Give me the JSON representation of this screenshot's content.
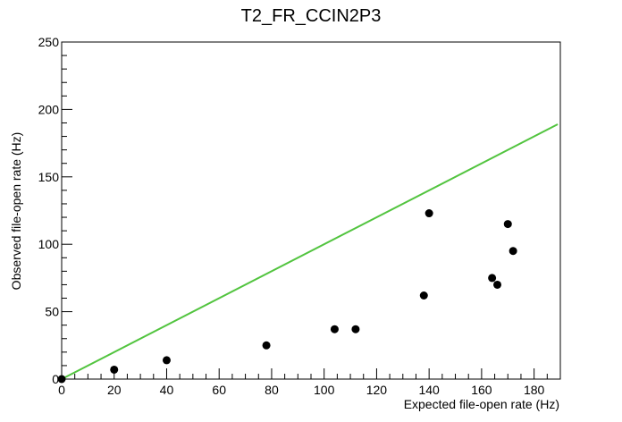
{
  "chart_data": {
    "type": "scatter",
    "title": "T2_FR_CCIN2P3",
    "xlabel": "Expected file-open rate (Hz)",
    "ylabel": "Observed file-open rate (Hz)",
    "xlim": [
      0,
      190
    ],
    "ylim": [
      0,
      250
    ],
    "grid": false,
    "x_ticks": [
      "0",
      "20",
      "40",
      "60",
      "80",
      "100",
      "120",
      "140",
      "160",
      "180"
    ],
    "y_ticks": [
      "0",
      "50",
      "100",
      "150",
      "200",
      "250"
    ],
    "series": [
      {
        "marker": "circle",
        "color": "#000000",
        "x": [
          0,
          20,
          40,
          78,
          104,
          112,
          138,
          140,
          164,
          166,
          170,
          172
        ],
        "y": [
          0,
          7,
          14,
          25,
          37,
          37,
          62,
          123,
          75,
          70,
          115,
          95
        ]
      }
    ],
    "reference_line": {
      "color": "#52c43f",
      "x": [
        0,
        189
      ],
      "y": [
        0,
        189
      ]
    }
  }
}
